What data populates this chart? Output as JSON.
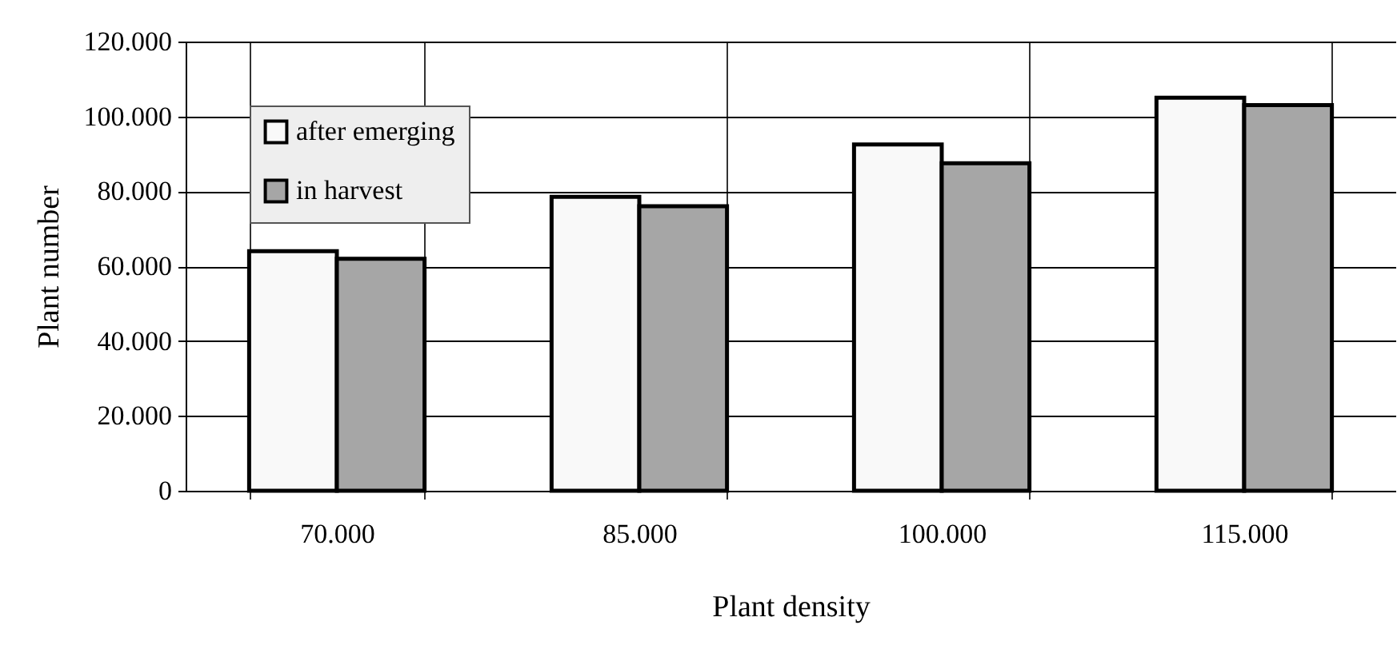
{
  "chart_data": {
    "type": "bar",
    "xlabel": "Plant density",
    "ylabel": "Plant number",
    "categories": [
      "70.000",
      "85.000",
      "100.000",
      "115.000"
    ],
    "series": [
      {
        "name": "after emerging",
        "color": "#f9f9f9",
        "values": [
          64000,
          78500,
          92500,
          105000
        ]
      },
      {
        "name": "in harvest",
        "color": "#a6a6a6",
        "values": [
          62000,
          76000,
          87500,
          103000
        ]
      }
    ],
    "ylim": [
      0,
      120000
    ],
    "yticks": [
      {
        "value": 0,
        "label": "0"
      },
      {
        "value": 20000,
        "label": "20.000"
      },
      {
        "value": 40000,
        "label": "40.000"
      },
      {
        "value": 60000,
        "label": "60.000"
      },
      {
        "value": 80000,
        "label": "80.000"
      },
      {
        "value": 100000,
        "label": "100.000"
      },
      {
        "value": 120000,
        "label": "120.000"
      }
    ],
    "grid": true,
    "legend": "top left"
  }
}
